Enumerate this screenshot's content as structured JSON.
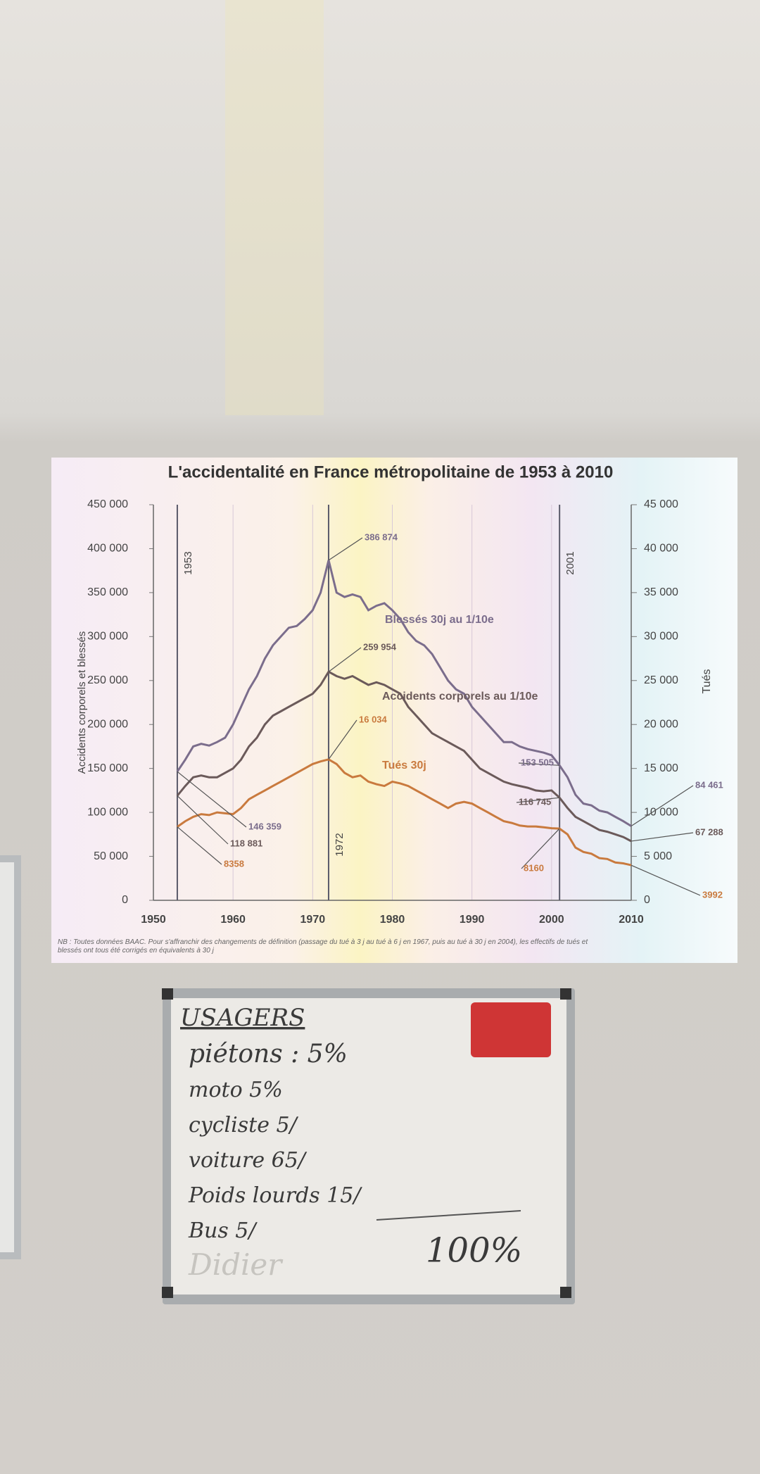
{
  "chart_data": {
    "type": "line",
    "title": "L'accidentalité en France métropolitaine de 1953 à 2010",
    "y_label": "Accidents corporels et blessés",
    "y2_label": "Tués",
    "x": [
      1953,
      1954,
      1955,
      1956,
      1957,
      1958,
      1959,
      1960,
      1961,
      1962,
      1963,
      1964,
      1965,
      1966,
      1967,
      1968,
      1969,
      1970,
      1971,
      1972,
      1973,
      1974,
      1975,
      1976,
      1977,
      1978,
      1979,
      1980,
      1981,
      1982,
      1983,
      1984,
      1985,
      1986,
      1987,
      1988,
      1989,
      1990,
      1991,
      1992,
      1993,
      1994,
      1995,
      1996,
      1997,
      1998,
      1999,
      2000,
      2001,
      2002,
      2003,
      2004,
      2005,
      2006,
      2007,
      2008,
      2009,
      2010
    ],
    "series": [
      {
        "name": "Blessés 30j au 1/10e",
        "color": "#7b6d8c",
        "axis": "y",
        "values": [
          146359,
          160000,
          175000,
          178000,
          176000,
          180000,
          185000,
          200000,
          220000,
          240000,
          255000,
          275000,
          290000,
          300000,
          310000,
          312000,
          320000,
          330000,
          350000,
          386874,
          350000,
          345000,
          348000,
          345000,
          330000,
          335000,
          338000,
          330000,
          320000,
          305000,
          295000,
          290000,
          280000,
          265000,
          250000,
          240000,
          235000,
          220000,
          210000,
          200000,
          190000,
          180000,
          180000,
          175000,
          172000,
          170000,
          168000,
          165000,
          153505,
          140000,
          120000,
          110000,
          108000,
          102000,
          100000,
          95000,
          90000,
          84461
        ]
      },
      {
        "name": "Accidents corporels au 1/10e",
        "color": "#6b5a5a",
        "axis": "y",
        "values": [
          118881,
          130000,
          140000,
          142000,
          140000,
          140000,
          145000,
          150000,
          160000,
          175000,
          185000,
          200000,
          210000,
          215000,
          220000,
          225000,
          230000,
          235000,
          245000,
          259954,
          255000,
          252000,
          255000,
          250000,
          245000,
          248000,
          245000,
          240000,
          235000,
          220000,
          210000,
          200000,
          190000,
          185000,
          180000,
          175000,
          170000,
          160000,
          150000,
          145000,
          140000,
          135000,
          132000,
          130000,
          128000,
          125000,
          124000,
          125000,
          116745,
          105000,
          95000,
          90000,
          85000,
          80000,
          78000,
          75000,
          72000,
          67288
        ]
      },
      {
        "name": "Tués 30j",
        "color": "#c97a3e",
        "axis": "y2",
        "values": [
          8358,
          9000,
          9500,
          9800,
          9700,
          10000,
          9900,
          9800,
          10500,
          11500,
          12000,
          12500,
          13000,
          13500,
          14000,
          14500,
          15000,
          15500,
          15800,
          16034,
          15500,
          14500,
          14000,
          14200,
          13500,
          13200,
          13000,
          13500,
          13300,
          13000,
          12500,
          12000,
          11500,
          11000,
          10500,
          11000,
          11200,
          11000,
          10500,
          10000,
          9500,
          9000,
          8800,
          8500,
          8400,
          8400,
          8300,
          8200,
          8160,
          7500,
          6000,
          5500,
          5300,
          4800,
          4700,
          4300,
          4200,
          3992
        ]
      }
    ],
    "xlim": [
      1950,
      2010
    ],
    "xticks": [
      1950,
      1960,
      1970,
      1980,
      1990,
      2000,
      2010
    ],
    "ylim": [
      0,
      450000
    ],
    "yticks": [
      0,
      {
        "value": 50000,
        "label": "50 000"
      },
      {
        "value": 100000,
        "label": "100 000"
      },
      {
        "value": 150000,
        "label": "150 000"
      },
      {
        "value": 200000,
        "label": "200 000"
      },
      {
        "value": 250000,
        "label": "250 000"
      },
      {
        "value": 300000,
        "label": "300 000"
      },
      {
        "value": 350000,
        "label": "350 000"
      },
      {
        "value": 400000,
        "label": "400 000"
      },
      {
        "value": 450000,
        "label": "450 000"
      }
    ],
    "y2lim": [
      0,
      45000
    ],
    "y2ticks": [
      0,
      {
        "value": 5000,
        "label": "5 000"
      },
      {
        "value": 10000,
        "label": "10 000"
      },
      {
        "value": 15000,
        "label": "15 000"
      },
      {
        "value": 20000,
        "label": "20 000"
      },
      {
        "value": 25000,
        "label": "25 000"
      },
      {
        "value": 30000,
        "label": "30 000"
      },
      {
        "value": 35000,
        "label": "35 000"
      },
      {
        "value": 40000,
        "label": "40 000"
      },
      {
        "value": 45000,
        "label": "45 000"
      }
    ],
    "grid": true,
    "reference_lines": [
      {
        "x": 1953,
        "label": "1953"
      },
      {
        "x": 1972,
        "label": "1972"
      },
      {
        "x": 2001,
        "label": "2001"
      }
    ],
    "annotations": [
      {
        "text": "386 874",
        "x": 1972,
        "value": 386874
      },
      {
        "text": "259 954",
        "x": 1972,
        "value": 259954
      },
      {
        "text": "16 034",
        "x": 1972,
        "value": 16034
      },
      {
        "text": "146 359",
        "x": 1953,
        "value": 146359
      },
      {
        "text": "118 881",
        "x": 1953,
        "value": 118881
      },
      {
        "text": "8358",
        "x": 1953,
        "value": 8358
      },
      {
        "text": "153 505",
        "x": 2001,
        "value": 153505
      },
      {
        "text": "116 745",
        "x": 2001,
        "value": 116745
      },
      {
        "text": "8160",
        "x": 2001,
        "value": 8160
      },
      {
        "text": "84 461",
        "x": 2010,
        "value": 84461
      },
      {
        "text": "67 288",
        "x": 2010,
        "value": 67288
      },
      {
        "text": "3992",
        "x": 2010,
        "value": 3992
      }
    ],
    "note": "NB : Toutes données BAAC. Pour s'affranchir des changements de définition (passage du tué à 3 j au tué à 6 j en 1967, puis au tué à 30 j en 2004), les effectifs de tués et blessés ont tous été corrigés en équivalents à 30 j"
  },
  "whiteboard": {
    "title": "USAGERS",
    "lines": [
      "piétons : 5%",
      "moto 5%",
      "cycliste 5/",
      "voiture 65/",
      "Poids lourds 15/",
      "Bus 5/"
    ],
    "total": "100%",
    "signature": "Didier"
  }
}
